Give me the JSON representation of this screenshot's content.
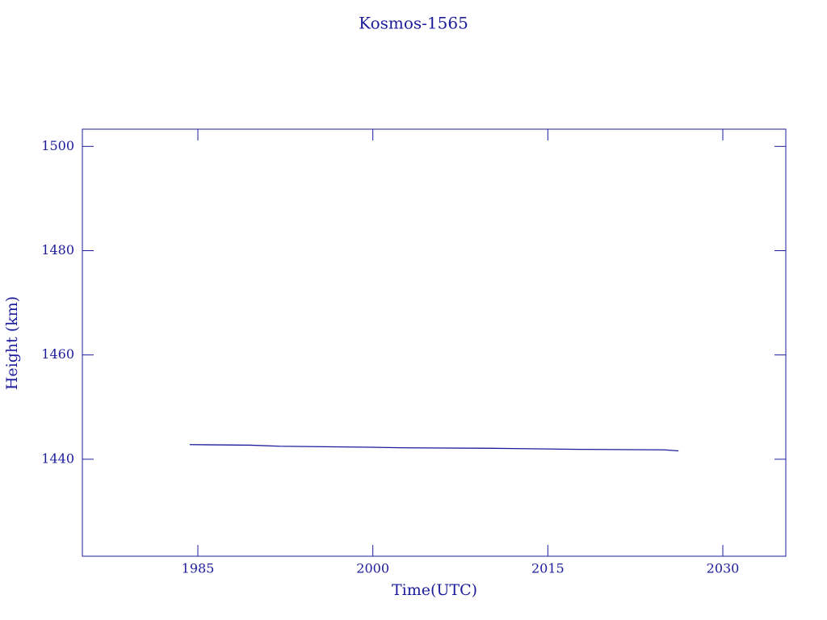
{
  "chart_data": {
    "type": "line",
    "title": "Kosmos-1565",
    "x_label": "Time(UTC)",
    "y_label": "Height (km)",
    "xlim": [
      1975.1,
      2035.4
    ],
    "ylim": [
      1421.4,
      1503.3
    ],
    "xticks": [
      1985,
      2000,
      2015,
      2030
    ],
    "yticks": [
      1440,
      1460,
      1480,
      1500
    ],
    "x": [
      1984.3,
      1989.5,
      1992.0,
      1999.8,
      2002.3,
      2010.3,
      2017.7,
      2025.0,
      2026.2
    ],
    "series": [
      {
        "name": "Height",
        "color": "#1c1c9c",
        "values": [
          1442.8,
          1442.7,
          1442.5,
          1442.3,
          1442.2,
          1442.1,
          1441.9,
          1441.8,
          1441.6
        ]
      }
    ]
  }
}
